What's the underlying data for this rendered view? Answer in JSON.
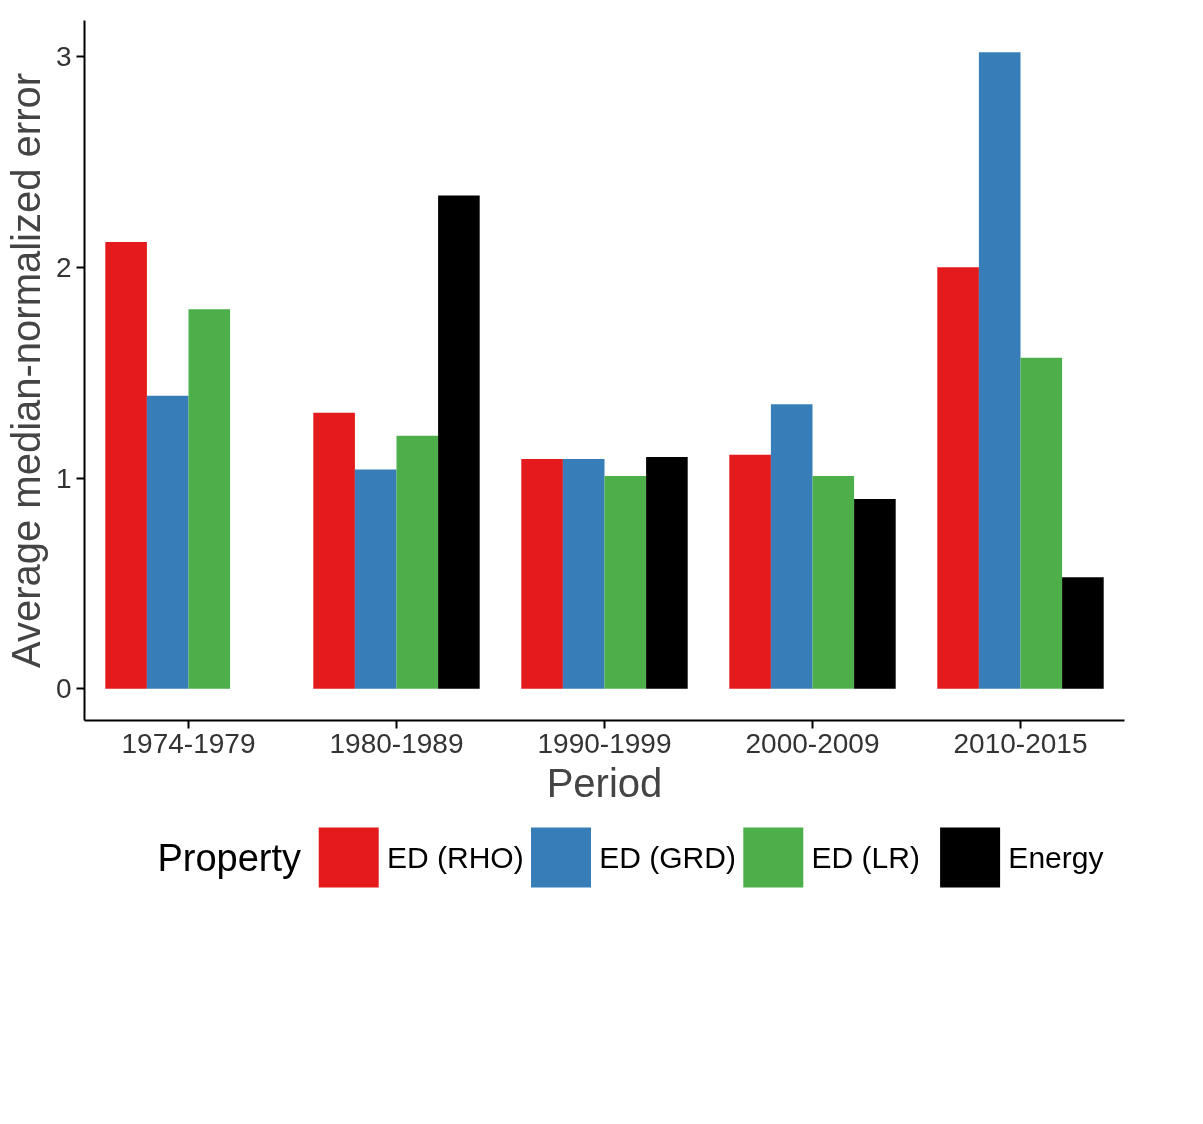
{
  "chart_data": {
    "type": "bar",
    "xlabel": "Period",
    "ylabel": "Average median-normalized error",
    "legend_title": "Property",
    "categories": [
      "1974-1979",
      "1980-1989",
      "1990-1999",
      "2000-2009",
      "2010-2015"
    ],
    "series": [
      {
        "name": "ED (RHO)",
        "color": "#e41a1c",
        "values": [
          2.12,
          1.31,
          1.09,
          1.11,
          2.0
        ]
      },
      {
        "name": "ED (GRD)",
        "color": "#377eb8",
        "values": [
          1.39,
          1.04,
          1.09,
          1.35,
          3.02
        ]
      },
      {
        "name": "ED (LR)",
        "color": "#4daf4a",
        "values": [
          1.8,
          1.2,
          1.01,
          1.01,
          1.57
        ]
      },
      {
        "name": "Energy",
        "color": "#000000",
        "values": [
          null,
          2.34,
          1.1,
          0.9,
          0.53
        ]
      }
    ],
    "ylim": [
      -0.15,
      3.17
    ],
    "yticks": [
      0,
      1,
      2,
      3
    ],
    "grid": false,
    "legend": "bottom"
  }
}
